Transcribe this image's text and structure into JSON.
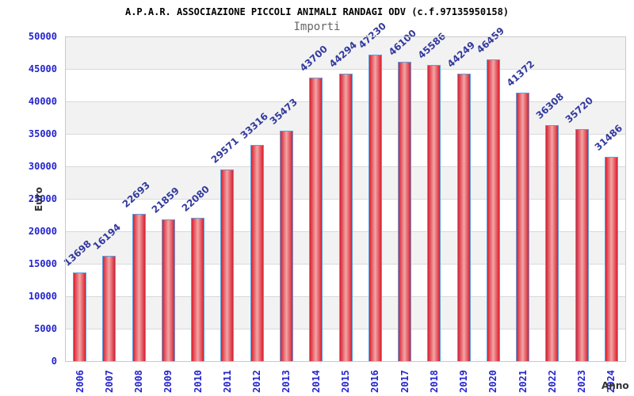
{
  "chart_data": {
    "type": "bar",
    "title": "A.P.A.R. ASSOCIAZIONE PICCOLI ANIMALI RANDAGI ODV (c.f.97135950158)",
    "subtitle": "Importi",
    "xlabel": "Anno",
    "ylabel": "Euro",
    "categories": [
      "2006",
      "2007",
      "2008",
      "2009",
      "2010",
      "2011",
      "2012",
      "2013",
      "2014",
      "2015",
      "2016",
      "2017",
      "2018",
      "2019",
      "2020",
      "2021",
      "2022",
      "2023",
      "2024"
    ],
    "values": [
      13698,
      16194,
      22693,
      21859,
      22080,
      29571,
      33316,
      35473,
      43700,
      44294,
      47230,
      46100,
      45586,
      44249,
      46459,
      41372,
      36308,
      35720,
      31486
    ],
    "ylim": [
      0,
      50000
    ],
    "ytick_step": 5000,
    "grid": true,
    "legend_position": "none",
    "value_labels_rotated": true,
    "colors": {
      "bar_edge": "#d92030",
      "bar_center": "#f2a6a6",
      "bar_border": "#5aa0dd",
      "tick_label": "#2424cf",
      "value_label": "#333a9e",
      "band": "#f2f2f2",
      "grid_line": "#d9d9d9",
      "plot_border": "#c9c9c9",
      "title": "#000000",
      "subtitle": "#666666",
      "axis_title": "#333333"
    }
  }
}
